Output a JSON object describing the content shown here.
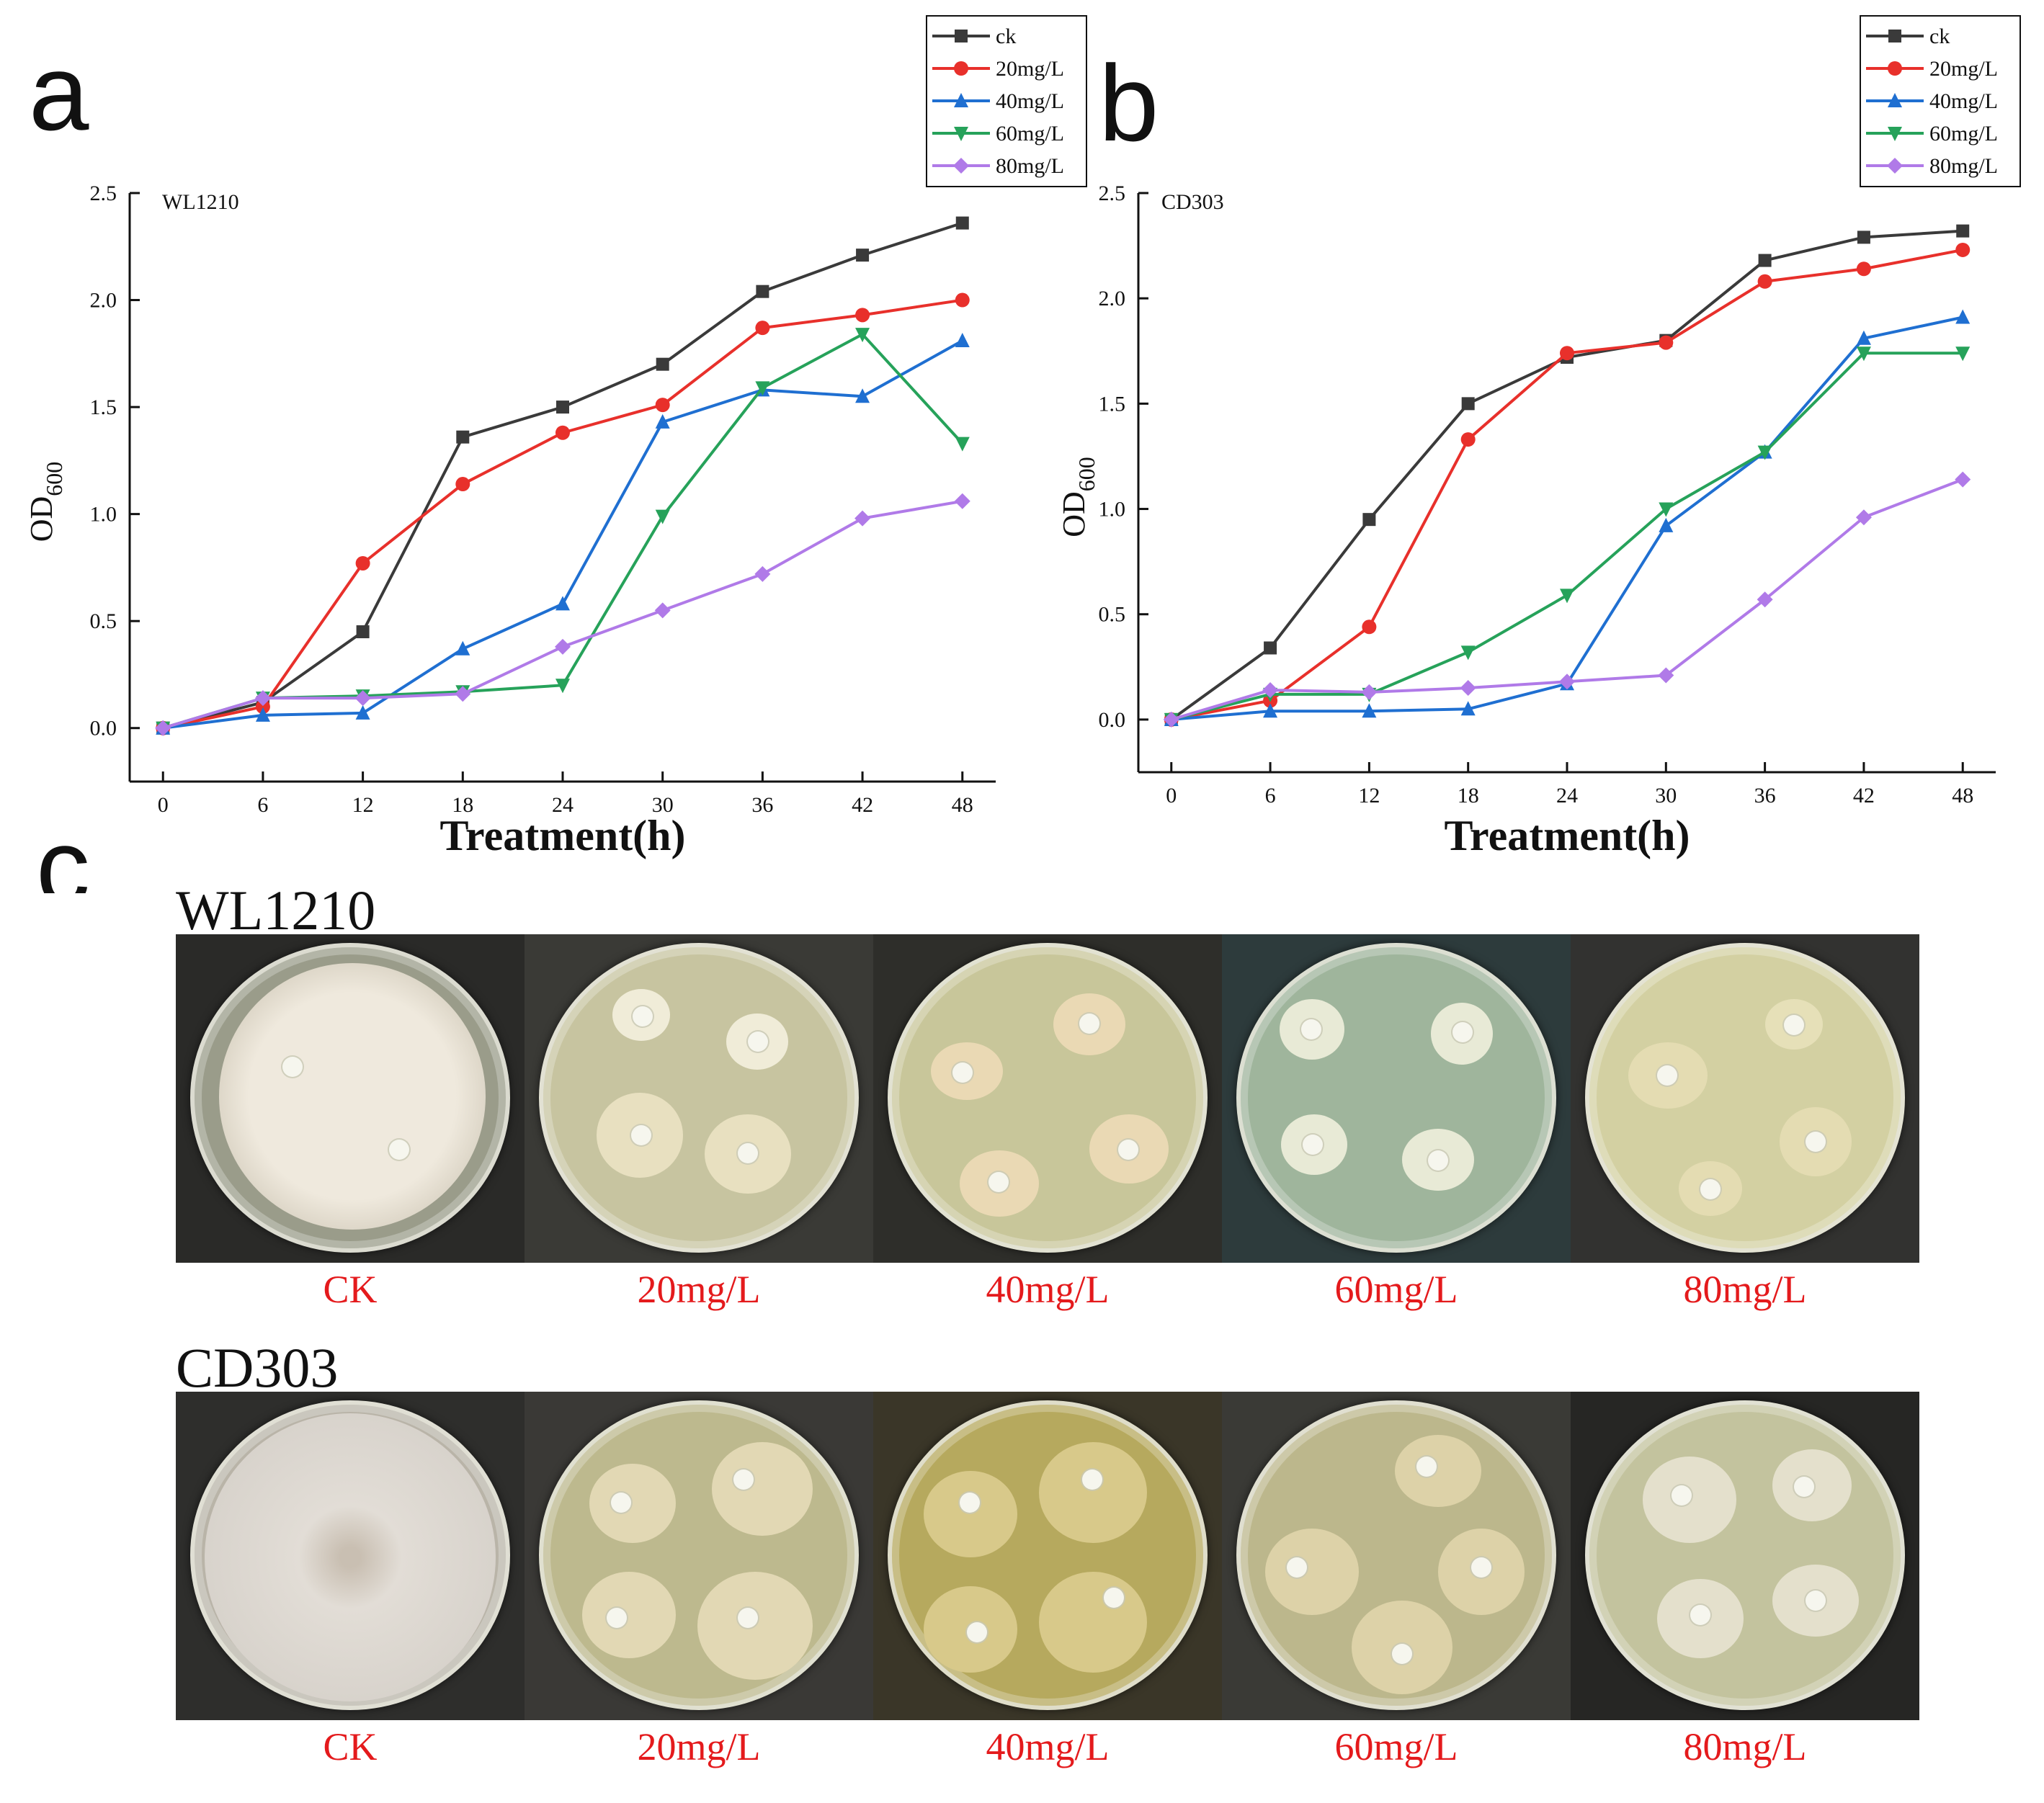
{
  "panel_letters": {
    "a": "a",
    "b": "b",
    "c": "c"
  },
  "series_colors": [
    "#3a3a3a",
    "#e8302b",
    "#1f6fd1",
    "#26a25a",
    "#b07ae8"
  ],
  "series_markers": [
    "square",
    "circle",
    "triangle-up",
    "triangle-down",
    "diamond"
  ],
  "chart_data": [
    {
      "type": "line",
      "panel": "a",
      "title": "WL1210",
      "xlabel": "Treatment(h)",
      "ylabel": "OD600",
      "ylabel_main": "OD",
      "ylabel_sub": "600",
      "x": [
        0,
        6,
        12,
        18,
        24,
        30,
        36,
        42,
        48
      ],
      "xlim": [
        -2,
        50
      ],
      "ylim": [
        -0.25,
        2.5
      ],
      "yticks": [
        "0.0",
        "0.5",
        "1.0",
        "1.5",
        "2.0",
        "2.5"
      ],
      "xticks": [
        "0",
        "6",
        "12",
        "18",
        "24",
        "30",
        "36",
        "42",
        "48"
      ],
      "legend_position": "top-right",
      "series": [
        {
          "name": "ck",
          "values": [
            0.0,
            0.12,
            0.45,
            1.36,
            1.5,
            1.7,
            2.04,
            2.21,
            2.36
          ]
        },
        {
          "name": "20mg/L",
          "values": [
            0.0,
            0.1,
            0.77,
            1.14,
            1.38,
            1.51,
            1.87,
            1.93,
            2.0
          ]
        },
        {
          "name": "40mg/L",
          "values": [
            0.0,
            0.06,
            0.07,
            0.37,
            0.58,
            1.43,
            1.58,
            1.55,
            1.81
          ]
        },
        {
          "name": "60mg/L",
          "values": [
            0.0,
            0.14,
            0.15,
            0.17,
            0.2,
            0.99,
            1.59,
            1.84,
            1.33
          ]
        },
        {
          "name": "80mg/L",
          "values": [
            0.0,
            0.14,
            0.14,
            0.16,
            0.38,
            0.55,
            0.72,
            0.98,
            1.06
          ]
        }
      ]
    },
    {
      "type": "line",
      "panel": "b",
      "title": "CD303",
      "xlabel": "Treatment(h)",
      "ylabel": "OD600",
      "ylabel_main": "OD",
      "ylabel_sub": "600",
      "x": [
        0,
        6,
        12,
        18,
        24,
        30,
        36,
        42,
        48
      ],
      "xlim": [
        -2,
        50
      ],
      "ylim": [
        -0.25,
        2.5
      ],
      "yticks": [
        "0.0",
        "0.5",
        "1.0",
        "1.5",
        "2.0",
        "2.5"
      ],
      "xticks": [
        "0",
        "6",
        "12",
        "18",
        "24",
        "30",
        "36",
        "42",
        "48"
      ],
      "legend_position": "top-right",
      "series": [
        {
          "name": "ck",
          "values": [
            0.0,
            0.34,
            0.95,
            1.5,
            1.72,
            1.8,
            2.18,
            2.29,
            2.32
          ]
        },
        {
          "name": "20mg/L",
          "values": [
            0.0,
            0.09,
            0.44,
            1.33,
            1.74,
            1.79,
            2.08,
            2.14,
            2.23
          ]
        },
        {
          "name": "40mg/L",
          "values": [
            0.0,
            0.04,
            0.04,
            0.05,
            0.17,
            0.92,
            1.27,
            1.81,
            1.91
          ]
        },
        {
          "name": "60mg/L",
          "values": [
            0.0,
            0.12,
            0.12,
            0.32,
            0.59,
            1.0,
            1.27,
            1.74,
            1.74
          ]
        },
        {
          "name": "80mg/L",
          "values": [
            0.0,
            0.14,
            0.13,
            0.15,
            0.18,
            0.21,
            0.57,
            0.96,
            1.14
          ]
        }
      ]
    }
  ],
  "plates_section": {
    "letter": "c",
    "groups": [
      {
        "strain": "WL1210",
        "labels": [
          "CK",
          "20mg/L",
          "40mg/L",
          "60mg/L",
          "80mg/L"
        ]
      },
      {
        "strain": "CD303",
        "labels": [
          "CK",
          "20mg/L",
          "40mg/L",
          "60mg/L",
          "80mg/L"
        ]
      }
    ]
  }
}
